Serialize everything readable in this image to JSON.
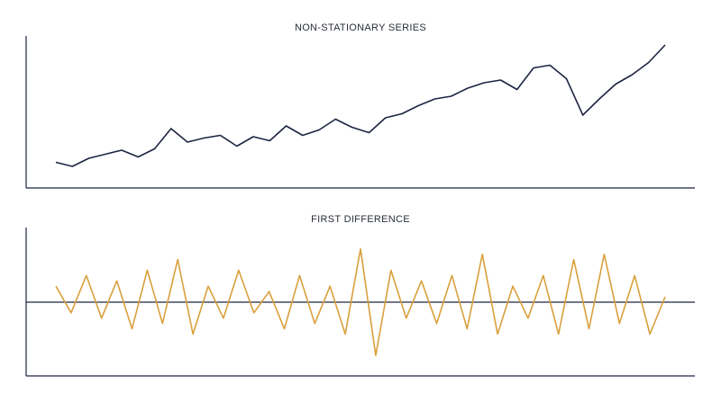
{
  "chart_data": [
    {
      "type": "line",
      "title": "NON-STATIONARY SERIES",
      "xlabel": "",
      "ylabel": "",
      "grid": false,
      "color": "#1c2541",
      "xlim": [
        0,
        100
      ],
      "ylim": [
        0,
        100
      ],
      "x": [
        0,
        2.7,
        5.4,
        8.1,
        10.8,
        13.5,
        16.2,
        18.9,
        21.6,
        24.3,
        27,
        29.7,
        32.4,
        35.1,
        37.8,
        40.5,
        43.2,
        45.9,
        48.6,
        51.4,
        54.1,
        56.8,
        59.5,
        62.2,
        64.9,
        67.6,
        70.3,
        73,
        75.7,
        78.4,
        81.1,
        83.8,
        86.5,
        89.2,
        91.9,
        94.6,
        97.3,
        100
      ],
      "values": [
        13,
        10,
        16,
        19,
        22,
        17,
        23,
        38,
        28,
        31,
        33,
        25,
        32,
        29,
        40,
        33,
        37,
        45,
        39,
        35,
        46,
        49,
        55,
        60,
        62,
        68,
        72,
        74,
        67,
        83,
        85,
        75,
        48,
        60,
        71,
        78,
        87,
        100
      ],
      "series": [
        {
          "values": [
            13,
            10,
            16,
            19,
            22,
            17,
            23,
            38,
            28,
            31,
            33,
            25,
            32,
            29,
            40,
            33,
            37,
            45,
            39,
            35,
            46,
            49,
            55,
            60,
            62,
            68,
            72,
            74,
            67,
            83,
            85,
            75,
            48,
            60,
            71,
            78,
            87,
            100
          ]
        }
      ]
    },
    {
      "type": "line",
      "title": "FIRST DIFFERENCE",
      "xlabel": "",
      "ylabel": "",
      "grid": false,
      "color": "#d9a03c",
      "baseline": 0,
      "xlim": [
        0,
        100
      ],
      "ylim": [
        -1.25,
        1.25
      ],
      "x": [
        0,
        2.5,
        5,
        7.5,
        10,
        12.5,
        15,
        17.5,
        20,
        22.5,
        25,
        27.5,
        30,
        32.5,
        35,
        37.5,
        40,
        42.5,
        45,
        47.5,
        50,
        52.5,
        55,
        57.5,
        60,
        62.5,
        65,
        67.5,
        70,
        72.5,
        75,
        77.5,
        80,
        82.5,
        85,
        87.5,
        90,
        92.5,
        95,
        97.5,
        100
      ],
      "values": [
        0.3,
        -0.2,
        0.5,
        -0.3,
        0.4,
        -0.5,
        0.6,
        -0.4,
        0.8,
        -0.6,
        0.3,
        -0.3,
        0.6,
        -0.2,
        0.2,
        -0.5,
        0.5,
        -0.4,
        0.3,
        -0.6,
        1.0,
        -1.0,
        0.6,
        -0.3,
        0.4,
        -0.4,
        0.5,
        -0.5,
        0.9,
        -0.6,
        0.3,
        -0.3,
        0.5,
        -0.6,
        0.8,
        -0.5,
        0.9,
        -0.4,
        0.5,
        -0.6,
        0.1
      ],
      "series": [
        {
          "values": [
            0.3,
            -0.2,
            0.5,
            -0.3,
            0.4,
            -0.5,
            0.6,
            -0.4,
            0.8,
            -0.6,
            0.3,
            -0.3,
            0.6,
            -0.2,
            0.2,
            -0.5,
            0.5,
            -0.4,
            0.3,
            -0.6,
            1.0,
            -1.0,
            0.6,
            -0.3,
            0.4,
            -0.4,
            0.5,
            -0.5,
            0.9,
            -0.6,
            0.3,
            -0.3,
            0.5,
            -0.6,
            0.8,
            -0.5,
            0.9,
            -0.4,
            0.5,
            -0.6,
            0.1
          ]
        }
      ]
    }
  ]
}
